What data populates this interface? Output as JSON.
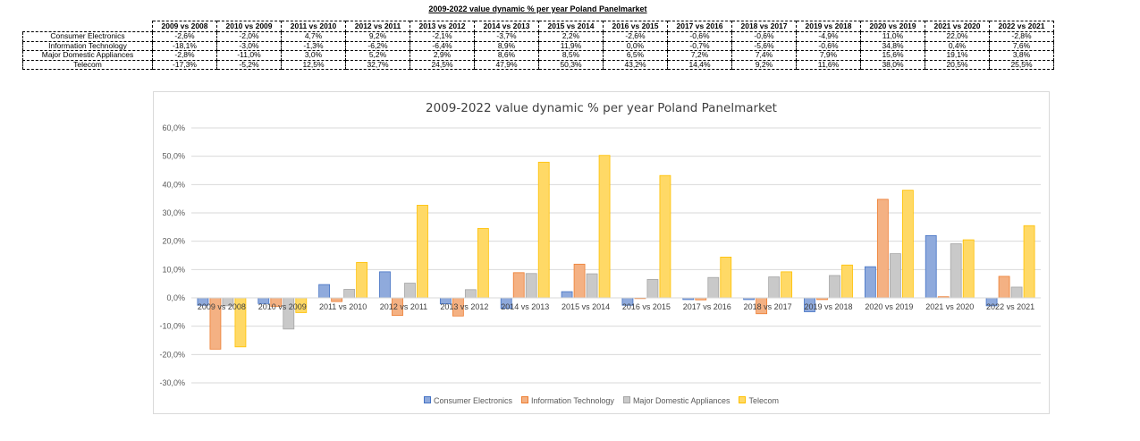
{
  "sheet": {
    "title": "2009-2022 value dynamic % per year Poland Panelmarket",
    "columns": [
      "2009 vs 2008",
      "2010 vs 2009",
      "2011 vs 2010",
      "2012 vs 2011",
      "2013 vs 2012",
      "2014 vs 2013",
      "2015 vs 2014",
      "2016 vs 2015",
      "2017 vs 2016",
      "2018 vs 2017",
      "2019 vs 2018",
      "2020 vs 2019",
      "2021 vs 2020",
      "2022 vs 2021"
    ],
    "rows": [
      {
        "label": "Consumer Electronics",
        "cells": [
          "-2,6%",
          "-2,0%",
          "4,7%",
          "9,2%",
          "-2,1%",
          "-3,7%",
          "2,2%",
          "-2,6%",
          "-0,6%",
          "-0,6%",
          "-4,9%",
          "11,0%",
          "22,0%",
          "-2,8%"
        ]
      },
      {
        "label": "Information Technology",
        "cells": [
          "-18,1%",
          "-3,0%",
          "-1,3%",
          "-6,2%",
          "-6,4%",
          "8,9%",
          "11,9%",
          "0,0%",
          "-0,7%",
          "-5,6%",
          "-0,6%",
          "34,8%",
          "0,4%",
          "7,6%"
        ]
      },
      {
        "label": "Major Domestic Appliances",
        "cells": [
          "-2,8%",
          "-11,0%",
          "3,0%",
          "5,2%",
          "2,9%",
          "8,6%",
          "8,5%",
          "6,5%",
          "7,2%",
          "7,4%",
          "7,9%",
          "15,6%",
          "19,1%",
          "3,8%"
        ]
      },
      {
        "label": "Telecom",
        "cells": [
          "-17,3%",
          "-5,2%",
          "12,5%",
          "32,7%",
          "24,5%",
          "47,9%",
          "50,3%",
          "43,2%",
          "14,4%",
          "9,2%",
          "11,6%",
          "38,0%",
          "20,5%",
          "25,5%"
        ]
      }
    ]
  },
  "chart_data": {
    "type": "bar",
    "title": "2009-2022 value dynamic % per year Poland Panelmarket",
    "categories": [
      "2009 vs 2008",
      "2010 vs 2009",
      "2011 vs 2010",
      "2012 vs 2011",
      "2013 vs 2012",
      "2014 vs 2013",
      "2015 vs 2014",
      "2016 vs 2015",
      "2017 vs 2016",
      "2018 vs 2017",
      "2019 vs 2018",
      "2020 vs 2019",
      "2021 vs 2020",
      "2022 vs 2021"
    ],
    "series": [
      {
        "name": "Consumer Electronics",
        "values": [
          -2.6,
          -2.0,
          4.7,
          9.2,
          -2.1,
          -3.7,
          2.2,
          -2.6,
          -0.6,
          -0.6,
          -4.9,
          11.0,
          22.0,
          -2.8
        ],
        "color": "#8FAADC",
        "border": "#4472C4"
      },
      {
        "name": "Information Technology",
        "values": [
          -18.1,
          -3.0,
          -1.3,
          -6.2,
          -6.4,
          8.9,
          11.9,
          0.0,
          -0.7,
          -5.6,
          -0.6,
          34.8,
          0.4,
          7.6
        ],
        "color": "#F4B183",
        "border": "#ED7D31"
      },
      {
        "name": "Major Domestic Appliances",
        "values": [
          -2.8,
          -11.0,
          3.0,
          5.2,
          2.9,
          8.6,
          8.5,
          6.5,
          7.2,
          7.4,
          7.9,
          15.6,
          19.1,
          3.8
        ],
        "color": "#C9C9C9",
        "border": "#A5A5A5"
      },
      {
        "name": "Telecom",
        "values": [
          -17.3,
          -5.2,
          12.5,
          32.7,
          24.5,
          47.9,
          50.3,
          43.2,
          14.4,
          9.2,
          11.6,
          38.0,
          20.5,
          25.5
        ],
        "color": "#FFD966",
        "border": "#FFC000"
      }
    ],
    "yticks": [
      "60,0%",
      "50,0%",
      "40,0%",
      "30,0%",
      "20,0%",
      "10,0%",
      "0,0%",
      "-10,0%",
      "-20,0%",
      "-30,0%"
    ],
    "ylim": [
      -30,
      60
    ],
    "xlabel": "",
    "ylabel": "",
    "grid": true,
    "legend": "bottom"
  }
}
